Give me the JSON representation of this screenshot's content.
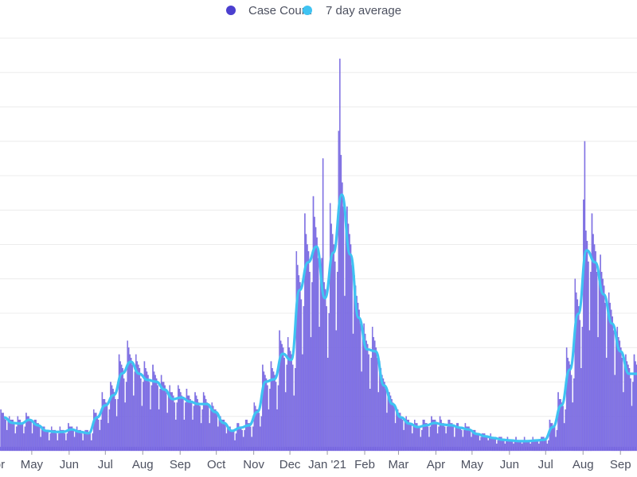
{
  "legend": {
    "items": [
      {
        "label": "Case Count",
        "color": "#4b3fcf"
      },
      {
        "label": "7 day average",
        "color": "#3fc3f2"
      }
    ]
  },
  "chart_data": {
    "type": "bar",
    "title": "",
    "xlabel": "",
    "ylabel": "",
    "ylim": [
      0,
      120
    ],
    "y_grid_step": 10,
    "grid": true,
    "y_axis_labels_visible": false,
    "legend_placement": "top-center",
    "colors": {
      "bars": "#8273e8",
      "bar_stroke": "#6f5fd6",
      "line": "#3fc3f2",
      "grid": "#ececec"
    },
    "x_ticks": [
      {
        "label": "Apr",
        "date": "2020-04-01"
      },
      {
        "label": "May",
        "date": "2020-05-01"
      },
      {
        "label": "Jun",
        "date": "2020-06-01"
      },
      {
        "label": "Jul",
        "date": "2020-07-01"
      },
      {
        "label": "Aug",
        "date": "2020-08-01"
      },
      {
        "label": "Sep",
        "date": "2020-09-01"
      },
      {
        "label": "Oct",
        "date": "2020-10-01"
      },
      {
        "label": "Nov",
        "date": "2020-11-01"
      },
      {
        "label": "Dec",
        "date": "2020-12-01"
      },
      {
        "label": "Jan '21",
        "date": "2021-01-01"
      },
      {
        "label": "Feb",
        "date": "2021-02-01"
      },
      {
        "label": "Mar",
        "date": "2021-03-01"
      },
      {
        "label": "Apr",
        "date": "2021-04-01"
      },
      {
        "label": "May",
        "date": "2021-05-01"
      },
      {
        "label": "Jun",
        "date": "2021-06-01"
      },
      {
        "label": "Jul",
        "date": "2021-07-01"
      },
      {
        "label": "Aug",
        "date": "2021-08-01"
      },
      {
        "label": "Sep",
        "date": "2021-09-01"
      }
    ],
    "series": [
      {
        "name": "Case Count",
        "type": "bar",
        "first_date": "2020-04-05",
        "daily_values": [
          12,
          11,
          11,
          10,
          9,
          6,
          9,
          10,
          9,
          9,
          9,
          8,
          5,
          7,
          10,
          9,
          9,
          8,
          8,
          5,
          7,
          11,
          10,
          10,
          9,
          9,
          5,
          8,
          9,
          9,
          8,
          8,
          7,
          4,
          7,
          7,
          7,
          6,
          6,
          6,
          3,
          5,
          7,
          6,
          6,
          6,
          5,
          3,
          5,
          7,
          6,
          6,
          6,
          5,
          3,
          5,
          8,
          7,
          7,
          7,
          6,
          4,
          6,
          7,
          6,
          6,
          6,
          5,
          3,
          5,
          6,
          6,
          6,
          5,
          5,
          3,
          5,
          12,
          11,
          11,
          10,
          9,
          6,
          9,
          17,
          15,
          15,
          14,
          13,
          8,
          12,
          20,
          19,
          18,
          17,
          15,
          10,
          15,
          28,
          26,
          25,
          24,
          21,
          14,
          20,
          32,
          30,
          28,
          27,
          25,
          16,
          23,
          28,
          26,
          25,
          24,
          21,
          13,
          20,
          26,
          24,
          23,
          22,
          20,
          12,
          19,
          25,
          23,
          22,
          21,
          19,
          12,
          18,
          22,
          20,
          20,
          19,
          17,
          11,
          16,
          19,
          17,
          17,
          16,
          14,
          9,
          14,
          19,
          18,
          17,
          16,
          15,
          9,
          14,
          18,
          16,
          16,
          15,
          14,
          9,
          13,
          17,
          16,
          15,
          14,
          13,
          8,
          12,
          17,
          16,
          15,
          14,
          13,
          8,
          12,
          14,
          13,
          12,
          12,
          11,
          7,
          10,
          10,
          9,
          9,
          9,
          8,
          5,
          7,
          7,
          7,
          6,
          6,
          6,
          3,
          5,
          8,
          8,
          7,
          7,
          6,
          4,
          6,
          9,
          9,
          8,
          8,
          7,
          4,
          7,
          14,
          13,
          12,
          12,
          11,
          7,
          10,
          25,
          23,
          22,
          21,
          19,
          12,
          18,
          26,
          24,
          23,
          22,
          20,
          12,
          19,
          35,
          32,
          31,
          30,
          27,
          17,
          25,
          33,
          30,
          29,
          28,
          25,
          16,
          24,
          58,
          54,
          51,
          49,
          44,
          28,
          42,
          69,
          63,
          60,
          58,
          52,
          33,
          49,
          74,
          68,
          65,
          62,
          56,
          36,
          53,
          56,
          85,
          49,
          47,
          42,
          27,
          40,
          72,
          66,
          63,
          60,
          55,
          35,
          52,
          93,
          114,
          86,
          78,
          71,
          45,
          67,
          71,
          66,
          63,
          60,
          54,
          34,
          51,
          48,
          45,
          43,
          41,
          37,
          23,
          35,
          37,
          34,
          32,
          31,
          28,
          18,
          27,
          36,
          33,
          32,
          30,
          27,
          17,
          26,
          24,
          22,
          21,
          20,
          18,
          11,
          17,
          17,
          16,
          15,
          14,
          13,
          8,
          12,
          12,
          11,
          11,
          10,
          9,
          6,
          9,
          10,
          9,
          9,
          8,
          8,
          5,
          7,
          9,
          8,
          8,
          7,
          7,
          4,
          6,
          9,
          9,
          8,
          8,
          7,
          4,
          7,
          10,
          9,
          9,
          9,
          8,
          5,
          7,
          10,
          9,
          8,
          8,
          7,
          5,
          7,
          9,
          9,
          8,
          8,
          7,
          4,
          7,
          8,
          8,
          7,
          7,
          6,
          4,
          6,
          8,
          7,
          7,
          7,
          6,
          4,
          6,
          6,
          6,
          5,
          5,
          5,
          3,
          4,
          5,
          5,
          5,
          4,
          4,
          3,
          4,
          5,
          4,
          4,
          4,
          4,
          2,
          3,
          4,
          4,
          4,
          3,
          3,
          2,
          3,
          4,
          3,
          3,
          3,
          3,
          2,
          3,
          4,
          3,
          3,
          3,
          3,
          2,
          3,
          4,
          3,
          3,
          3,
          3,
          2,
          3,
          4,
          3,
          3,
          3,
          3,
          2,
          3,
          4,
          4,
          4,
          3,
          3,
          2,
          3,
          9,
          8,
          8,
          7,
          7,
          4,
          6,
          17,
          15,
          15,
          14,
          13,
          8,
          12,
          30,
          27,
          26,
          25,
          22,
          14,
          21,
          50,
          46,
          44,
          42,
          38,
          24,
          36,
          73,
          90,
          64,
          61,
          55,
          35,
          52,
          69,
          63,
          60,
          58,
          52,
          33,
          49,
          57,
          52,
          50,
          48,
          43,
          27,
          41,
          46,
          43,
          41,
          39,
          35,
          22,
          33,
          36,
          33,
          32,
          30,
          27,
          17,
          26,
          28,
          26,
          25,
          24,
          21,
          13,
          20,
          28,
          26,
          25,
          24,
          21,
          13,
          20
        ]
      },
      {
        "name": "7 day average",
        "type": "line",
        "first_date": "2020-04-05",
        "step_days": 7,
        "values": [
          9.7,
          8.1,
          7.9,
          9.0,
          7.4,
          5.8,
          5.5,
          5.5,
          6.2,
          5.5,
          5.1,
          9.7,
          13.2,
          16.2,
          22.5,
          25.9,
          22.4,
          20.6,
          20.1,
          17.8,
          15.0,
          15.5,
          14.3,
          13.6,
          13.6,
          11.3,
          8.1,
          5.8,
          6.7,
          7.4,
          11.3,
          20.1,
          20.8,
          28.2,
          26.4,
          46.7,
          54.8,
          59.4,
          44.4,
          57.6,
          74.5,
          57.1,
          38.7,
          29.5,
          28.9,
          19.0,
          13.6,
          9.7,
          7.9,
          6.9,
          7.4,
          8.1,
          7.6,
          7.4,
          6.7,
          6.2,
          4.9,
          4.2,
          3.7,
          3.2,
          3.0,
          2.8,
          2.8,
          3.0,
          3.2,
          6.9,
          13.2,
          23.6,
          39.8,
          58.3,
          54.8,
          45.5,
          37.0,
          28.9,
          22.4,
          22.4
        ]
      }
    ]
  }
}
